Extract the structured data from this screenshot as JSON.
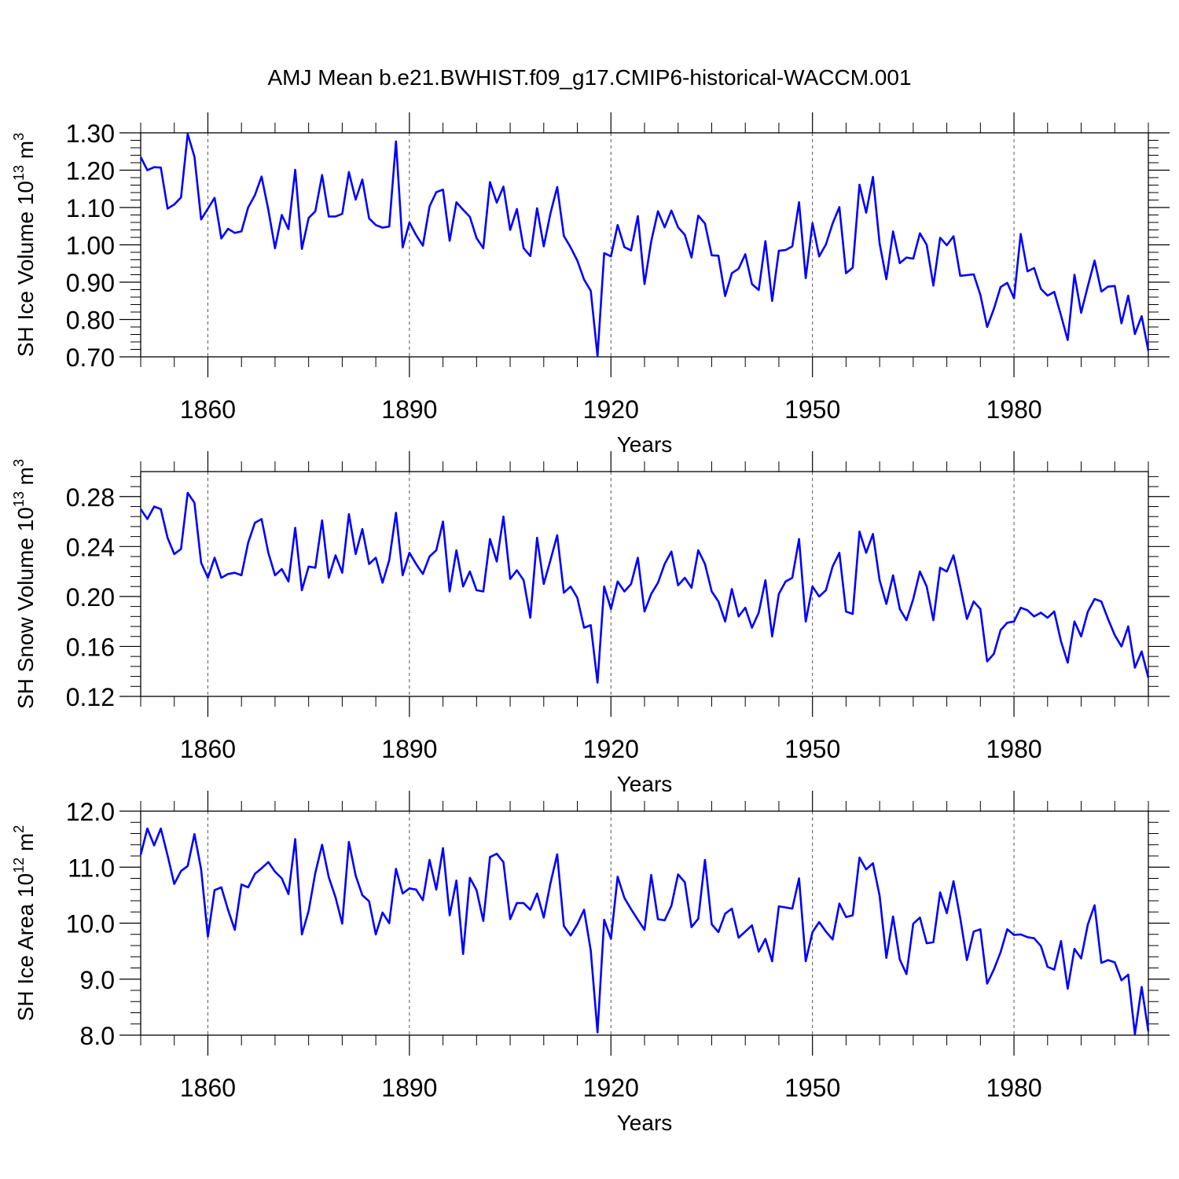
{
  "title": "AMJ Mean b.e21.BWHIST.f09_g17.CMIP6-historical-WACCM.001",
  "colors": {
    "series": "#0000ff",
    "axis": "#000000",
    "grid": "#555555"
  },
  "chart_data": [
    {
      "type": "line",
      "ylabel": "SH Ice Volume 10",
      "ylabel_exp": "13",
      "ylabel_unit": " m",
      "ylabel_unit_exp": "3",
      "xlabel": "Years",
      "xlim": [
        1850,
        2000
      ],
      "ylim": [
        0.7,
        1.3
      ],
      "yticks": [
        0.7,
        0.8,
        0.9,
        1.0,
        1.1,
        1.2,
        1.3
      ],
      "yticklabels": [
        "0.70",
        "0.80",
        "0.90",
        "1.00",
        "1.10",
        "1.20",
        "1.30"
      ],
      "xticks": [
        1860,
        1890,
        1920,
        1950,
        1980
      ],
      "xticklabels": [
        "1860",
        "1890",
        "1920",
        "1950",
        "1980"
      ],
      "gridlines_x": [
        1860,
        1890,
        1920,
        1950,
        1980
      ],
      "start_year": 1850,
      "values": [
        1.235,
        1.2,
        1.208,
        1.207,
        1.097,
        1.108,
        1.127,
        1.297,
        1.236,
        1.068,
        1.097,
        1.126,
        1.017,
        1.043,
        1.032,
        1.036,
        1.1,
        1.133,
        1.183,
        1.094,
        0.991,
        1.08,
        1.042,
        1.201,
        0.989,
        1.072,
        1.09,
        1.187,
        1.076,
        1.076,
        1.083,
        1.195,
        1.121,
        1.175,
        1.071,
        1.053,
        1.046,
        1.049,
        1.277,
        0.993,
        1.06,
        1.026,
        0.998,
        1.103,
        1.141,
        1.148,
        1.011,
        1.114,
        1.094,
        1.075,
        1.018,
        0.991,
        1.168,
        1.113,
        1.156,
        1.04,
        1.096,
        0.991,
        0.97,
        1.098,
        0.996,
        1.084,
        1.155,
        1.024,
        0.993,
        0.958,
        0.907,
        0.877,
        0.702,
        0.978,
        0.969,
        1.053,
        0.994,
        0.985,
        1.077,
        0.895,
        1.009,
        1.09,
        1.047,
        1.092,
        1.047,
        1.027,
        0.966,
        1.078,
        1.057,
        0.972,
        0.971,
        0.863,
        0.924,
        0.936,
        0.975,
        0.895,
        0.879,
        1.01,
        0.85,
        0.984,
        0.986,
        0.996,
        1.114,
        0.911,
        1.058,
        0.969,
        1.001,
        1.057,
        1.101,
        0.924,
        0.939,
        1.161,
        1.086,
        1.182,
        1.004,
        0.908,
        1.036,
        0.951,
        0.966,
        0.963,
        1.031,
        1.0,
        0.891,
        1.019,
        0.999,
        1.023,
        0.917,
        0.919,
        0.921,
        0.866,
        0.78,
        0.828,
        0.887,
        0.898,
        0.857,
        1.029,
        0.929,
        0.938,
        0.882,
        0.864,
        0.874,
        0.811,
        0.745,
        0.92,
        0.818,
        0.89,
        0.958,
        0.875,
        0.888,
        0.89,
        0.79,
        0.864,
        0.761,
        0.809,
        0.716
      ]
    },
    {
      "type": "line",
      "ylabel": "SH Snow Volume 10",
      "ylabel_exp": "13",
      "ylabel_unit": " m",
      "ylabel_unit_exp": "3",
      "xlabel": "Years",
      "xlim": [
        1850,
        2000
      ],
      "ylim": [
        0.12,
        0.3
      ],
      "yticks": [
        0.12,
        0.16,
        0.2,
        0.24,
        0.28
      ],
      "yticklabels": [
        "0.12",
        "0.16",
        "0.20",
        "0.24",
        "0.28"
      ],
      "xticks": [
        1860,
        1890,
        1920,
        1950,
        1980
      ],
      "xticklabels": [
        "1860",
        "1890",
        "1920",
        "1950",
        "1980"
      ],
      "gridlines_x": [
        1860,
        1890,
        1920,
        1950,
        1980
      ],
      "start_year": 1850,
      "values": [
        0.27,
        0.262,
        0.272,
        0.27,
        0.247,
        0.234,
        0.238,
        0.283,
        0.275,
        0.227,
        0.215,
        0.231,
        0.215,
        0.218,
        0.219,
        0.217,
        0.243,
        0.259,
        0.262,
        0.235,
        0.217,
        0.222,
        0.212,
        0.255,
        0.205,
        0.224,
        0.223,
        0.261,
        0.215,
        0.233,
        0.219,
        0.266,
        0.234,
        0.254,
        0.226,
        0.231,
        0.211,
        0.229,
        0.267,
        0.217,
        0.235,
        0.226,
        0.218,
        0.232,
        0.237,
        0.26,
        0.204,
        0.237,
        0.208,
        0.22,
        0.205,
        0.204,
        0.246,
        0.228,
        0.264,
        0.214,
        0.221,
        0.213,
        0.183,
        0.247,
        0.21,
        0.229,
        0.249,
        0.203,
        0.208,
        0.199,
        0.175,
        0.177,
        0.131,
        0.208,
        0.19,
        0.212,
        0.204,
        0.21,
        0.231,
        0.188,
        0.202,
        0.211,
        0.226,
        0.236,
        0.209,
        0.215,
        0.207,
        0.237,
        0.226,
        0.204,
        0.196,
        0.18,
        0.206,
        0.184,
        0.191,
        0.175,
        0.187,
        0.213,
        0.168,
        0.202,
        0.212,
        0.215,
        0.246,
        0.18,
        0.208,
        0.2,
        0.205,
        0.224,
        0.235,
        0.188,
        0.186,
        0.252,
        0.235,
        0.25,
        0.213,
        0.194,
        0.217,
        0.19,
        0.181,
        0.198,
        0.22,
        0.208,
        0.181,
        0.223,
        0.22,
        0.233,
        0.208,
        0.182,
        0.196,
        0.19,
        0.148,
        0.154,
        0.173,
        0.179,
        0.18,
        0.191,
        0.189,
        0.184,
        0.187,
        0.183,
        0.188,
        0.164,
        0.147,
        0.18,
        0.168,
        0.188,
        0.198,
        0.196,
        0.182,
        0.169,
        0.16,
        0.176,
        0.143,
        0.156,
        0.135
      ]
    },
    {
      "type": "line",
      "ylabel": "SH Ice Area 10",
      "ylabel_exp": "12",
      "ylabel_unit": " m",
      "ylabel_unit_exp": "2",
      "xlabel": "Years",
      "xlim": [
        1850,
        2000
      ],
      "ylim": [
        8.0,
        12.0
      ],
      "yticks": [
        8.0,
        9.0,
        10.0,
        11.0,
        12.0
      ],
      "yticklabels": [
        "8.0",
        "9.0",
        "10.0",
        "11.0",
        "12.0"
      ],
      "xticks": [
        1860,
        1890,
        1920,
        1950,
        1980
      ],
      "xticklabels": [
        "1860",
        "1890",
        "1920",
        "1950",
        "1980"
      ],
      "gridlines_x": [
        1860,
        1890,
        1920,
        1950,
        1980
      ],
      "start_year": 1850,
      "values": [
        11.22,
        11.69,
        11.39,
        11.69,
        11.21,
        10.7,
        10.93,
        11.02,
        11.59,
        10.96,
        9.76,
        10.59,
        10.64,
        10.24,
        9.88,
        10.69,
        10.64,
        10.88,
        10.98,
        11.09,
        10.92,
        10.8,
        10.52,
        11.5,
        9.8,
        10.22,
        10.9,
        11.4,
        10.82,
        10.46,
        9.99,
        11.45,
        10.85,
        10.5,
        10.39,
        9.8,
        10.19,
        10.0,
        10.97,
        10.53,
        10.62,
        10.6,
        10.41,
        11.13,
        10.6,
        11.34,
        10.14,
        10.76,
        9.45,
        10.81,
        10.59,
        10.04,
        11.18,
        11.24,
        11.09,
        10.07,
        10.36,
        10.36,
        10.24,
        10.53,
        10.1,
        10.71,
        11.23,
        9.95,
        9.78,
        9.98,
        10.24,
        9.51,
        8.05,
        10.06,
        9.72,
        10.83,
        10.45,
        10.25,
        10.06,
        9.88,
        10.86,
        10.07,
        10.05,
        10.31,
        10.87,
        10.73,
        9.93,
        10.08,
        11.13,
        9.98,
        9.84,
        10.17,
        10.26,
        9.74,
        9.85,
        9.96,
        9.49,
        9.72,
        9.32,
        10.3,
        10.28,
        10.26,
        10.8,
        9.32,
        9.84,
        10.02,
        9.85,
        9.71,
        10.35,
        10.11,
        10.14,
        11.17,
        10.96,
        11.07,
        10.49,
        9.38,
        10.12,
        9.35,
        9.09,
        9.99,
        10.1,
        9.64,
        9.66,
        10.55,
        10.18,
        10.75,
        10.09,
        9.34,
        9.85,
        9.89,
        8.92,
        9.17,
        9.48,
        9.89,
        9.79,
        9.8,
        9.75,
        9.73,
        9.59,
        9.22,
        9.17,
        9.68,
        8.83,
        9.54,
        9.37,
        9.98,
        10.32,
        9.29,
        9.34,
        9.3,
        8.98,
        9.08,
        8.02,
        8.86,
        8.07
      ]
    }
  ]
}
